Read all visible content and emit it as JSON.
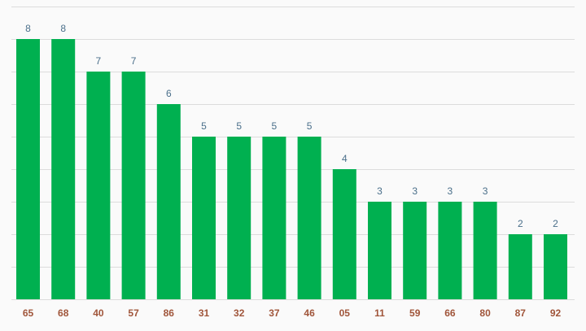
{
  "chart_data": {
    "type": "bar",
    "categories": [
      "65",
      "68",
      "40",
      "57",
      "86",
      "31",
      "32",
      "37",
      "46",
      "05",
      "11",
      "59",
      "66",
      "80",
      "87",
      "92"
    ],
    "values": [
      8,
      8,
      7,
      7,
      6,
      5,
      5,
      5,
      5,
      4,
      3,
      3,
      3,
      3,
      2,
      2
    ],
    "ylim": [
      0,
      9
    ],
    "grid": true,
    "title": "",
    "xlabel": "",
    "ylabel": "",
    "colors": {
      "bar": "#00b050",
      "value_label": "#4a6f8a",
      "tick_label": "#a0553a",
      "grid": "#dcdcdc"
    }
  }
}
